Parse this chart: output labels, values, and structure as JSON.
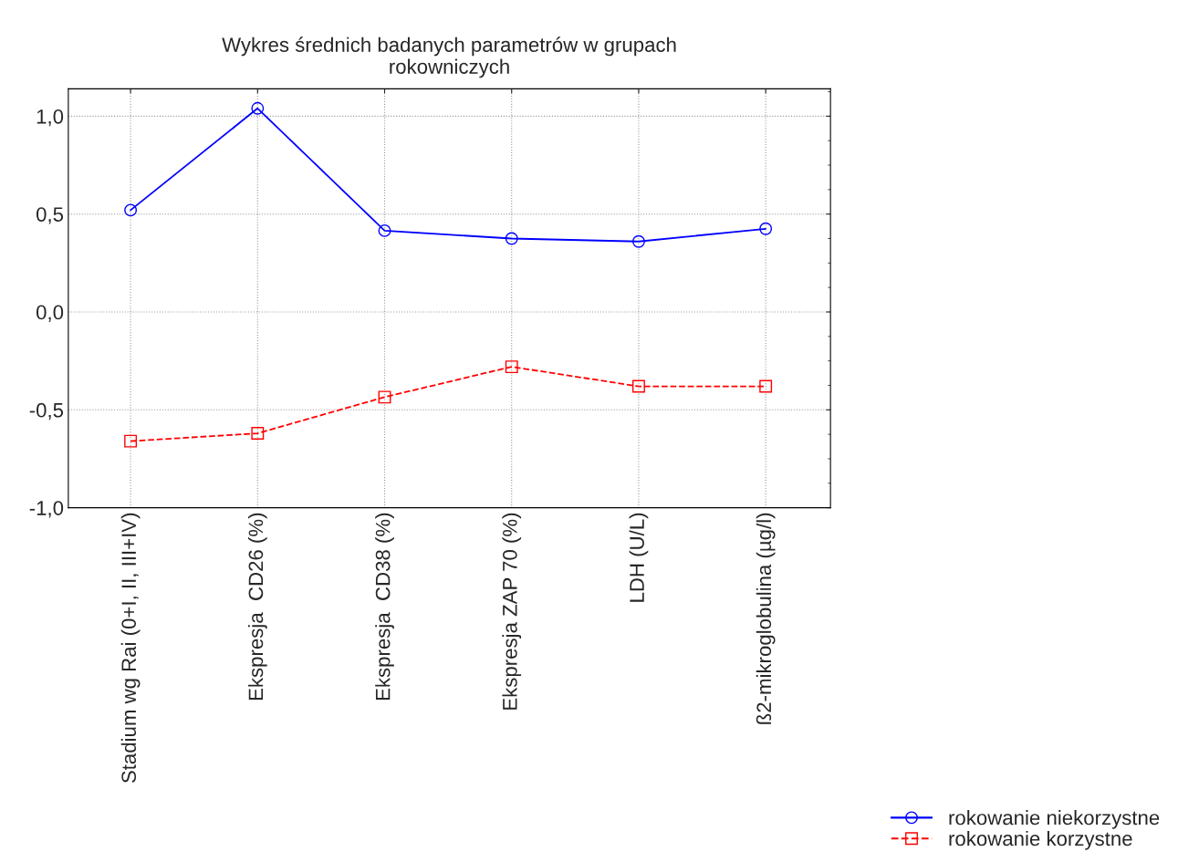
{
  "chart_data": {
    "type": "line",
    "title": "Wykres średnich badanych parametrów w grupach\nrokowniczych",
    "categories": [
      "Stadium wg Rai (0+I, II, III+IV)",
      "Ekspresja  CD26 (%)",
      "Ekspresja  CD38 (%)",
      "Ekspresja ZAP 70 (%)",
      "LDH (U/L)",
      "ß2-mikroglobulina (µg/l)"
    ],
    "series": [
      {
        "name": "rokowanie niekorzystne",
        "color": "#0000ff",
        "marker": "circle",
        "line_style": "solid",
        "values": [
          0.52,
          1.04,
          0.415,
          0.375,
          0.36,
          0.425
        ]
      },
      {
        "name": "rokowanie korzystne",
        "color": "#ff0000",
        "marker": "square",
        "line_style": "dashed",
        "values": [
          -0.66,
          -0.62,
          -0.435,
          -0.28,
          -0.38,
          -0.38
        ]
      }
    ],
    "ylim": [
      -1.0,
      1.14
    ],
    "yticks": [
      {
        "value": -1.0,
        "label": "-1,0"
      },
      {
        "value": -0.5,
        "label": "-0,5"
      },
      {
        "value": 0.0,
        "label": "0,0"
      },
      {
        "value": 0.5,
        "label": "0,5"
      },
      {
        "value": 1.0,
        "label": "1,0"
      }
    ],
    "grid": true,
    "legend": "bottom right"
  }
}
